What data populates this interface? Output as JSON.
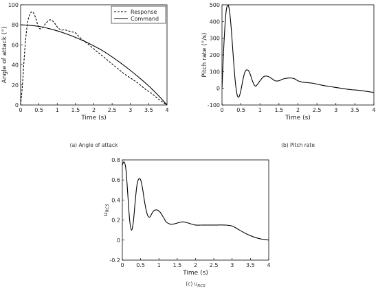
{
  "chart_data": [
    {
      "type": "line",
      "caption": "(a) Angle of attack",
      "xlabel": "Time (s)",
      "ylabel": "Angle of attack (°)",
      "xlim": [
        0,
        4
      ],
      "ylim": [
        0,
        100
      ],
      "xticks": [
        "0",
        "0.5",
        "1",
        "1.5",
        "2",
        "2.5",
        "3",
        "3.5",
        "4"
      ],
      "yticks": [
        "0",
        "20",
        "40",
        "60",
        "80",
        "100"
      ],
      "grid": false,
      "legend": "top-right",
      "series": [
        {
          "name": "Response",
          "style": "dashed",
          "color": "#000000",
          "x": [
            0,
            0.05,
            0.1,
            0.15,
            0.2,
            0.25,
            0.3,
            0.35,
            0.4,
            0.45,
            0.5,
            0.55,
            0.6,
            0.7,
            0.8,
            0.9,
            1.0,
            1.1,
            1.2,
            1.3,
            1.4,
            1.5,
            1.6,
            1.8,
            2.0,
            2.2,
            2.4,
            2.6,
            2.8,
            3.0,
            3.2,
            3.4,
            3.6,
            3.8,
            4.0
          ],
          "y": [
            0,
            20,
            48,
            70,
            84,
            90,
            93,
            92,
            88,
            82,
            77,
            76,
            77,
            82,
            85,
            83,
            78,
            75,
            75,
            74,
            73,
            72,
            68,
            62,
            56,
            50,
            44,
            38,
            32,
            27,
            22,
            16,
            11,
            5,
            0
          ]
        },
        {
          "name": "Command",
          "style": "solid",
          "color": "#000000",
          "x": [
            0,
            0.25,
            0.5,
            0.75,
            1.0,
            1.25,
            1.5,
            1.75,
            2.0,
            2.25,
            2.5,
            2.75,
            3.0,
            3.25,
            3.5,
            3.75,
            4.0
          ],
          "y": [
            80,
            79.5,
            78.5,
            76.5,
            74,
            71,
            67.5,
            63.5,
            59,
            54,
            48,
            41.5,
            34.5,
            27,
            19,
            10,
            0
          ]
        }
      ]
    },
    {
      "type": "line",
      "caption": "(b) Pitch rate",
      "xlabel": "Time (s)",
      "ylabel": "Pitch rate (°/s)",
      "xlim": [
        0,
        4
      ],
      "ylim": [
        -100,
        500
      ],
      "xticks": [
        "0",
        "0.5",
        "1",
        "1.5",
        "2",
        "2.5",
        "3",
        "3.5",
        "4"
      ],
      "yticks": [
        "-100",
        "0",
        "100",
        "200",
        "300",
        "400",
        "500"
      ],
      "grid": false,
      "series": [
        {
          "style": "solid",
          "color": "#000000",
          "x": [
            0,
            0.05,
            0.1,
            0.15,
            0.2,
            0.25,
            0.3,
            0.35,
            0.4,
            0.45,
            0.5,
            0.55,
            0.6,
            0.65,
            0.7,
            0.75,
            0.8,
            0.85,
            0.9,
            1.0,
            1.1,
            1.2,
            1.3,
            1.4,
            1.5,
            1.6,
            1.7,
            1.8,
            1.9,
            2.0,
            2.1,
            2.2,
            2.4,
            2.6,
            2.8,
            3.0,
            3.2,
            3.4,
            3.6,
            3.8,
            4.0
          ],
          "y": [
            0,
            260,
            440,
            500,
            460,
            340,
            180,
            40,
            -40,
            -50,
            -10,
            50,
            95,
            110,
            105,
            80,
            45,
            20,
            15,
            45,
            70,
            72,
            60,
            45,
            45,
            55,
            60,
            62,
            58,
            45,
            38,
            35,
            30,
            20,
            12,
            5,
            -2,
            -8,
            -12,
            -18,
            -25
          ]
        }
      ]
    },
    {
      "type": "line",
      "caption": "(c) u",
      "caption_subscript": "RCS",
      "xlabel": "Time (s)",
      "ylabel": "u",
      "ylabel_subscript": "RCS",
      "xlim": [
        0,
        4
      ],
      "ylim": [
        -0.2,
        0.8
      ],
      "xticks": [
        "0",
        "0.5",
        "1",
        "1.5",
        "2",
        "2.5",
        "3",
        "3.5",
        "4"
      ],
      "yticks": [
        "-0.2",
        "0",
        "0.2",
        "0.4",
        "0.6",
        "0.8"
      ],
      "grid": false,
      "series": [
        {
          "style": "solid",
          "color": "#000000",
          "x": [
            0,
            0.05,
            0.1,
            0.15,
            0.2,
            0.25,
            0.3,
            0.35,
            0.4,
            0.45,
            0.5,
            0.55,
            0.6,
            0.65,
            0.7,
            0.75,
            0.8,
            0.85,
            0.9,
            0.95,
            1.0,
            1.05,
            1.1,
            1.15,
            1.2,
            1.3,
            1.4,
            1.5,
            1.6,
            1.7,
            1.8,
            2.0,
            2.2,
            2.4,
            2.6,
            2.8,
            3.0,
            3.2,
            3.4,
            3.6,
            3.8,
            4.0
          ],
          "y": [
            0.75,
            0.78,
            0.7,
            0.45,
            0.2,
            0.1,
            0.18,
            0.38,
            0.55,
            0.61,
            0.6,
            0.52,
            0.4,
            0.3,
            0.24,
            0.23,
            0.26,
            0.29,
            0.3,
            0.3,
            0.29,
            0.27,
            0.24,
            0.21,
            0.18,
            0.16,
            0.16,
            0.17,
            0.18,
            0.18,
            0.17,
            0.15,
            0.15,
            0.15,
            0.15,
            0.15,
            0.14,
            0.1,
            0.06,
            0.03,
            0.01,
            0.0
          ]
        }
      ]
    }
  ]
}
